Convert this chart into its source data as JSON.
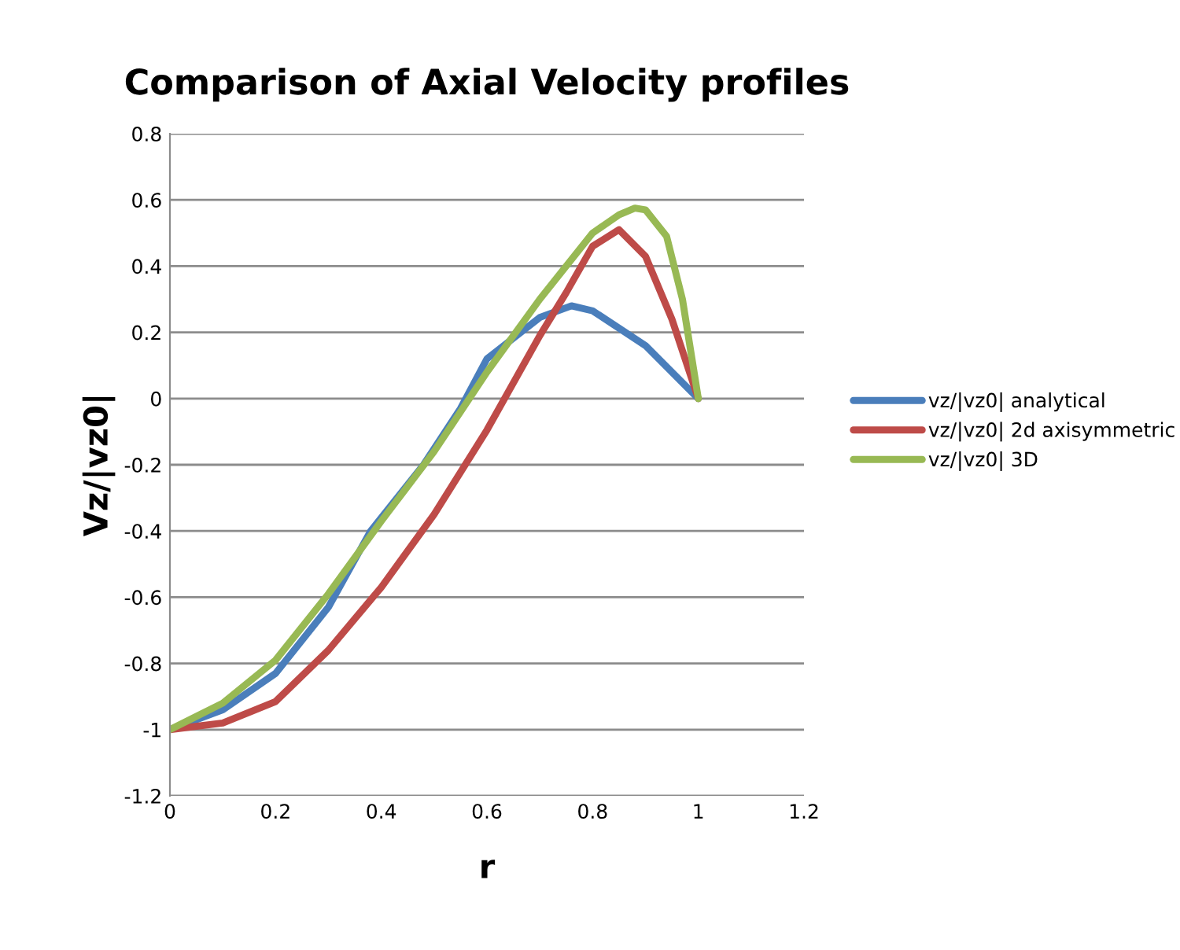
{
  "chart_data": {
    "type": "line",
    "title": "Comparison of Axial Velocity profiles",
    "xlabel": "r",
    "ylabel": "Vz/|vz0|",
    "xlim": [
      0,
      1.2
    ],
    "xticks": [
      0,
      0.2,
      0.4,
      0.6,
      0.8,
      1,
      1.2
    ],
    "ylim": [
      -1.2,
      0.8
    ],
    "yticks": [
      -1.2,
      -1,
      -0.8,
      -0.6,
      -0.4,
      -0.2,
      0,
      0.2,
      0.4,
      0.6,
      0.8
    ],
    "grid": "y",
    "legend": "right",
    "marker": "none",
    "line_style": "solid",
    "series": [
      {
        "name": "vz/|vz0| analytical",
        "color": "#4a7ebb",
        "x": [
          0,
          0.1,
          0.2,
          0.3,
          0.38,
          0.48,
          0.55,
          0.6,
          0.7,
          0.76,
          0.8,
          0.9,
          1
        ],
        "values": [
          -1,
          -0.94,
          -0.83,
          -0.63,
          -0.4,
          -0.2,
          -0.03,
          0.12,
          0.245,
          0.28,
          0.265,
          0.16,
          0
        ]
      },
      {
        "name": "vz/|vz0| 2d axisymmetric",
        "color": "#be4b48",
        "x": [
          0,
          0.1,
          0.2,
          0.3,
          0.4,
          0.5,
          0.6,
          0.7,
          0.75,
          0.8,
          0.85,
          0.9,
          0.95,
          1
        ],
        "values": [
          -1,
          -0.98,
          -0.915,
          -0.76,
          -0.57,
          -0.35,
          -0.095,
          0.19,
          0.32,
          0.46,
          0.51,
          0.43,
          0.24,
          0
        ]
      },
      {
        "name": "vz/|vz0| 3D",
        "color": "#98b954",
        "x": [
          0,
          0.1,
          0.2,
          0.3,
          0.4,
          0.5,
          0.6,
          0.7,
          0.8,
          0.85,
          0.88,
          0.9,
          0.94,
          0.97,
          1
        ],
        "values": [
          -1,
          -0.92,
          -0.79,
          -0.59,
          -0.37,
          -0.16,
          0.08,
          0.3,
          0.5,
          0.555,
          0.575,
          0.57,
          0.49,
          0.3,
          0
        ]
      }
    ]
  }
}
